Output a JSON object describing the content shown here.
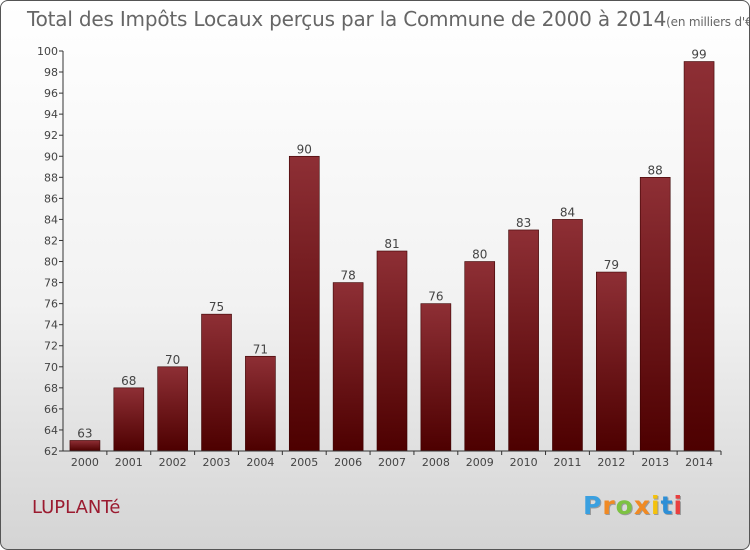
{
  "title": "Total des Impôts Locaux perçus par la Commune de 2000 à 2014",
  "unit": "(en milliers d'€)",
  "commune": "LUPLANTé",
  "logo": {
    "text": "Proxiti",
    "colors": [
      "#3aa0e0",
      "#f08a24",
      "#7dc242",
      "#f08a24",
      "#f4c20d",
      "#2e8fd6",
      "#e93f3f"
    ]
  },
  "colors": {
    "bar_top": "#8e2f35",
    "bar_bottom": "#4d0000",
    "commune": "#9b1b30"
  },
  "chart_data": {
    "type": "bar",
    "title": "Total des Impôts Locaux perçus par la Commune de 2000 à 2014",
    "ylabel": "(en milliers d'€)",
    "xlabel": "",
    "categories": [
      "2000",
      "2001",
      "2002",
      "2003",
      "2004",
      "2005",
      "2006",
      "2007",
      "2008",
      "2009",
      "2010",
      "2011",
      "2012",
      "2013",
      "2014"
    ],
    "values": [
      63,
      68,
      70,
      75,
      71,
      90,
      78,
      81,
      76,
      80,
      83,
      84,
      79,
      88,
      99
    ],
    "ylim": [
      62,
      100
    ],
    "yticks": [
      62,
      64,
      66,
      68,
      70,
      72,
      74,
      76,
      78,
      80,
      82,
      84,
      86,
      88,
      90,
      92,
      94,
      96,
      98,
      100
    ],
    "grid": false
  }
}
